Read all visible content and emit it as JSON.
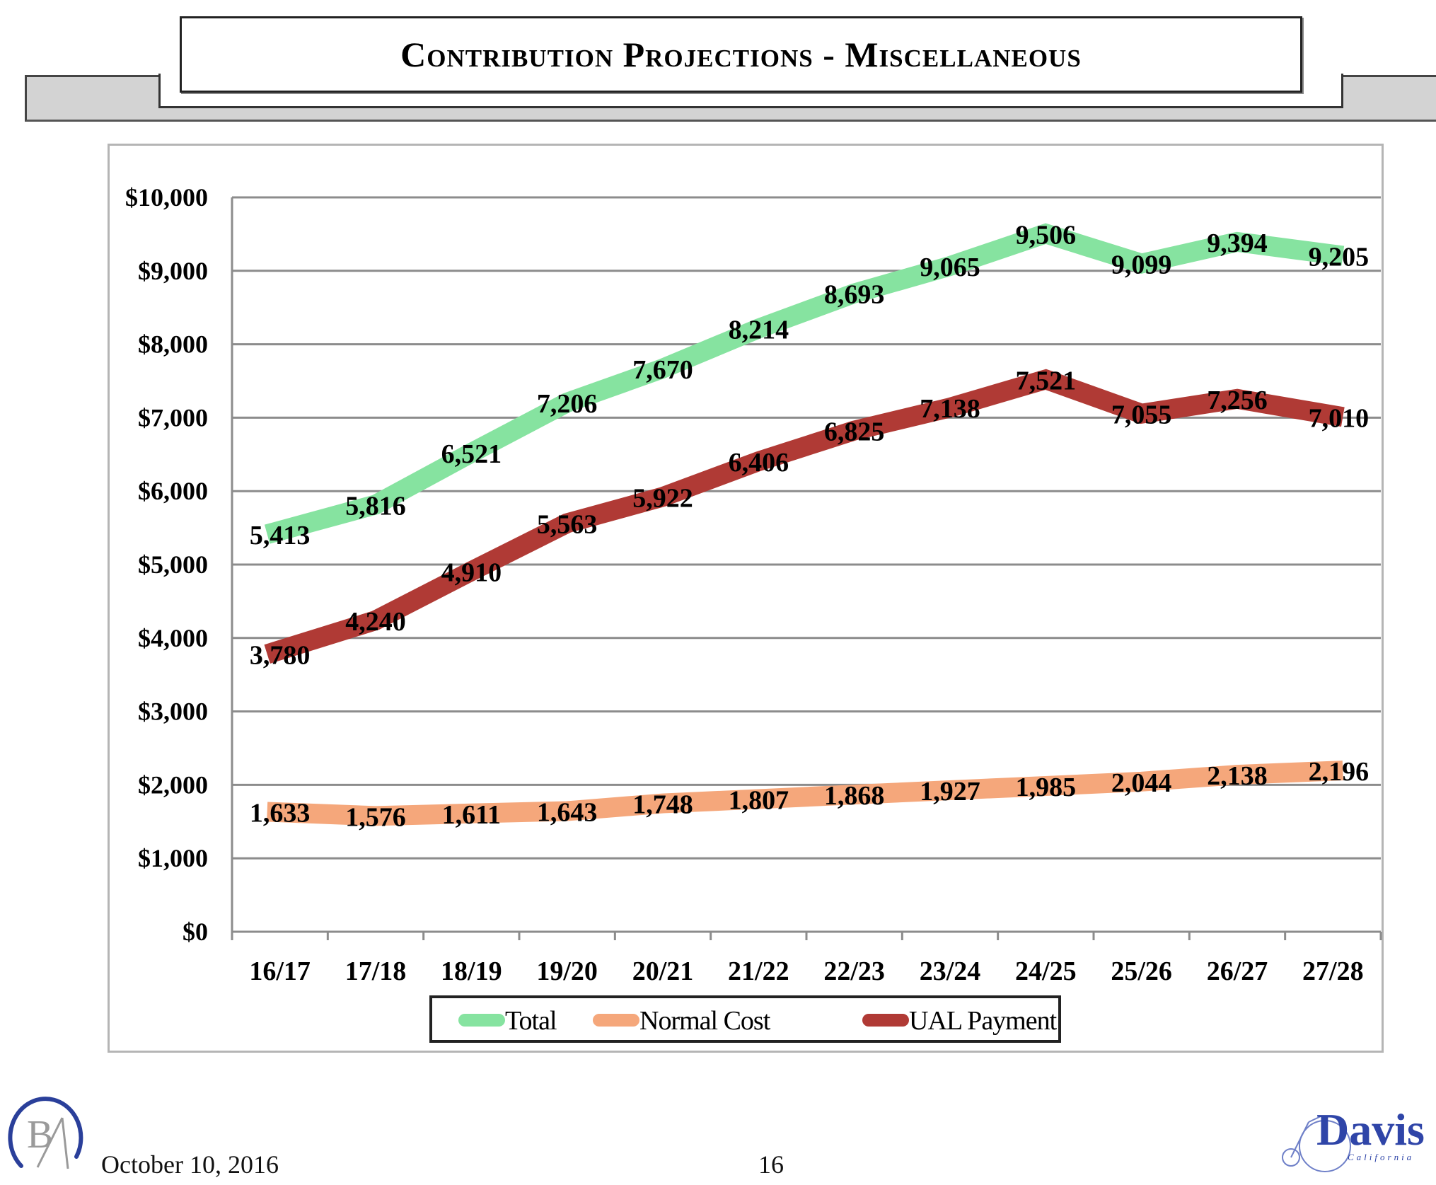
{
  "header": {
    "title": "Contribution Projections - Miscellaneous"
  },
  "footer": {
    "date": "October 10, 2016",
    "page_number": "16",
    "left_logo": {
      "name": "ba-logo",
      "letters": "BA",
      "color": "#2a3f9a"
    },
    "right_logo": {
      "name": "davis-logo",
      "text": "Davis",
      "subtext": "California",
      "color": "#2f45a8"
    }
  },
  "chart_data": {
    "type": "line",
    "title": "Contribution Projections - Miscellaneous",
    "xlabel": "",
    "ylabel": "",
    "categories": [
      "16/17",
      "17/18",
      "18/19",
      "19/20",
      "20/21",
      "21/22",
      "22/23",
      "23/24",
      "24/25",
      "25/26",
      "26/27",
      "27/28"
    ],
    "ylim": [
      0,
      10000
    ],
    "yticks": [
      0,
      1000,
      2000,
      3000,
      4000,
      5000,
      6000,
      7000,
      8000,
      9000,
      10000
    ],
    "ytick_labels": [
      "$0",
      "$1,000",
      "$2,000",
      "$3,000",
      "$4,000",
      "$5,000",
      "$6,000",
      "$7,000",
      "$8,000",
      "$9,000",
      "$10,000"
    ],
    "grid": true,
    "legend_position": "bottom",
    "series": [
      {
        "name": "Total",
        "color": "#86e3a0",
        "values": [
          5413,
          5816,
          6521,
          7206,
          7670,
          8214,
          8693,
          9065,
          9506,
          9099,
          9394,
          9205
        ],
        "labels": [
          "5,413",
          "5,816",
          "6,521",
          "7,206",
          "7,670",
          "8,214",
          "8,693",
          "9,065",
          "9,506",
          "9,099",
          "9,394",
          "9,205"
        ]
      },
      {
        "name": "Normal Cost",
        "color": "#f5a77b",
        "values": [
          1633,
          1576,
          1611,
          1643,
          1748,
          1807,
          1868,
          1927,
          1985,
          2044,
          2138,
          2196
        ],
        "labels": [
          "1,633",
          "1,576",
          "1,611",
          "1,643",
          "1,748",
          "1,807",
          "1,868",
          "1,927",
          "1,985",
          "2,044",
          "2,138",
          "2,196"
        ]
      },
      {
        "name": "UAL Payment",
        "color": "#b03a35",
        "values": [
          3780,
          4240,
          4910,
          5563,
          5922,
          6406,
          6825,
          7138,
          7521,
          7055,
          7256,
          7010
        ],
        "labels": [
          "3,780",
          "4,240",
          "4,910",
          "5,563",
          "5,922",
          "6,406",
          "6,825",
          "7,138",
          "7,521",
          "7,055",
          "7,256",
          "7,010"
        ]
      }
    ]
  }
}
